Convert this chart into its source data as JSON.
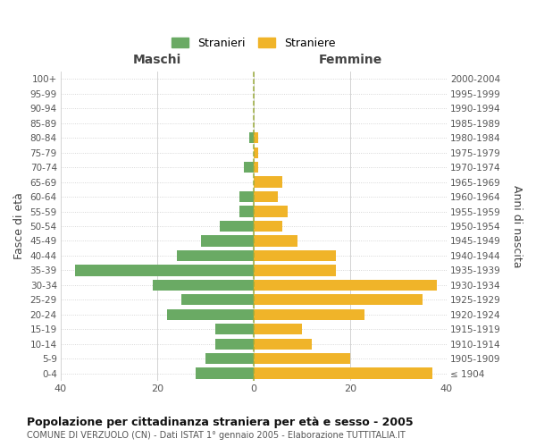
{
  "age_groups": [
    "100+",
    "95-99",
    "90-94",
    "85-89",
    "80-84",
    "75-79",
    "70-74",
    "65-69",
    "60-64",
    "55-59",
    "50-54",
    "45-49",
    "40-44",
    "35-39",
    "30-34",
    "25-29",
    "20-24",
    "15-19",
    "10-14",
    "5-9",
    "0-4"
  ],
  "birth_years": [
    "≤ 1904",
    "1905-1909",
    "1910-1914",
    "1915-1919",
    "1920-1924",
    "1925-1929",
    "1930-1934",
    "1935-1939",
    "1940-1944",
    "1945-1949",
    "1950-1954",
    "1955-1959",
    "1960-1964",
    "1965-1969",
    "1970-1974",
    "1975-1979",
    "1980-1984",
    "1985-1989",
    "1990-1994",
    "1995-1999",
    "2000-2004"
  ],
  "males": [
    0,
    0,
    0,
    0,
    1,
    0,
    2,
    0,
    3,
    3,
    7,
    11,
    16,
    37,
    21,
    15,
    18,
    8,
    8,
    10,
    12
  ],
  "females": [
    0,
    0,
    0,
    0,
    1,
    1,
    1,
    6,
    5,
    7,
    6,
    9,
    17,
    17,
    38,
    35,
    23,
    10,
    12,
    20,
    37
  ],
  "male_color": "#6aaa64",
  "female_color": "#f0b429",
  "background_color": "#ffffff",
  "grid_color": "#cccccc",
  "center_line_color": "#9aab3a",
  "title": "Popolazione per cittadinanza straniera per età e sesso - 2005",
  "subtitle": "COMUNE DI VERZUOLO (CN) - Dati ISTAT 1° gennaio 2005 - Elaborazione TUTTITALIA.IT",
  "xlabel_left": "Maschi",
  "xlabel_right": "Femmine",
  "ylabel_left": "Fasce di età",
  "ylabel_right": "Anni di nascita",
  "legend_stranieri": "Stranieri",
  "legend_straniere": "Straniere",
  "xlim": 40,
  "bar_height": 0.75
}
